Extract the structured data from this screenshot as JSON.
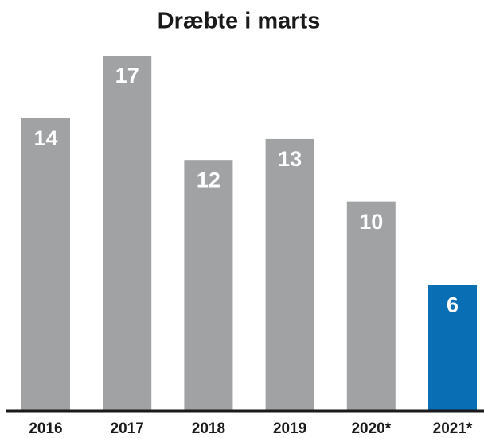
{
  "chart_data": {
    "type": "bar",
    "title": "Dræbte i marts",
    "categories": [
      "2016",
      "2017",
      "2018",
      "2019",
      "2020*",
      "2021*"
    ],
    "values": [
      14,
      17,
      12,
      13,
      10,
      6
    ],
    "colors": [
      "#a0a2a3",
      "#a0a2a3",
      "#a0a2a3",
      "#a0a2a3",
      "#a0a2a3",
      "#0a6eb4"
    ]
  }
}
